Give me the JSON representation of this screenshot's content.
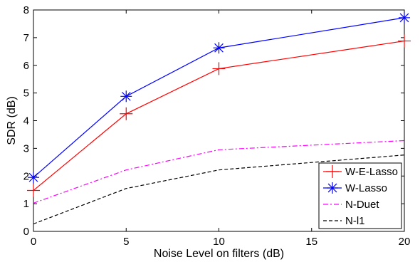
{
  "chart_data": {
    "type": "line",
    "xlabel": "Noise Level on filters (dB)",
    "ylabel": "SDR (dB)",
    "xlim": [
      0,
      20
    ],
    "ylim": [
      0,
      8
    ],
    "xticks": [
      "0",
      "5",
      "10",
      "15",
      "20"
    ],
    "yticks": [
      "0",
      "1",
      "2",
      "3",
      "4",
      "5",
      "6",
      "7",
      "8"
    ],
    "grid": false,
    "legend_position": "bottom-right",
    "x": [
      0,
      5,
      10,
      20
    ],
    "series": [
      {
        "name": "W-E-Lasso",
        "values": [
          1.48,
          4.25,
          5.88,
          6.88
        ],
        "color": "#ff0000",
        "dash": "solid",
        "marker": "plus"
      },
      {
        "name": "W-Lasso",
        "values": [
          1.95,
          4.88,
          6.63,
          7.72
        ],
        "color": "#0000ff",
        "dash": "solid",
        "marker": "asterisk"
      },
      {
        "name": "N-Duet",
        "values": [
          1.02,
          2.22,
          2.95,
          3.28
        ],
        "color": "#ff00ff",
        "dash": "dashdot",
        "marker": "none"
      },
      {
        "name": "N-l1",
        "values": [
          0.27,
          1.55,
          2.22,
          2.76
        ],
        "color": "#000000",
        "dash": "dashed",
        "marker": "none"
      }
    ]
  }
}
